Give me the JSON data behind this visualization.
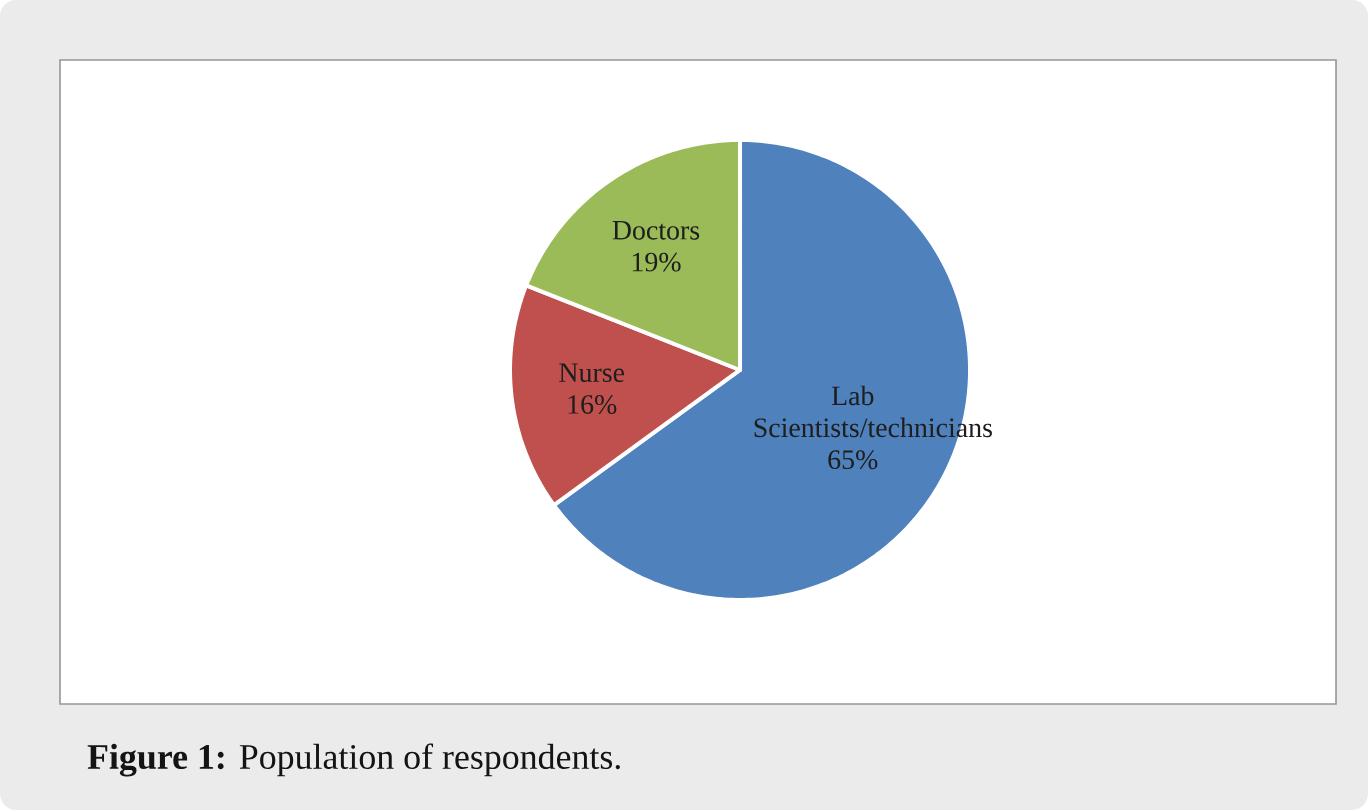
{
  "chart_data": {
    "type": "pie",
    "categories": [
      "Lab Scientists/technicians",
      "Nurse",
      "Doctors"
    ],
    "values": [
      65,
      16,
      19
    ],
    "value_labels": [
      "65%",
      "16%",
      "19%"
    ],
    "colors": [
      "#4f81bd",
      "#c0504d",
      "#9bbb59"
    ],
    "annotations": [
      "**Figure 1:** Population of respondents."
    ]
  }
}
